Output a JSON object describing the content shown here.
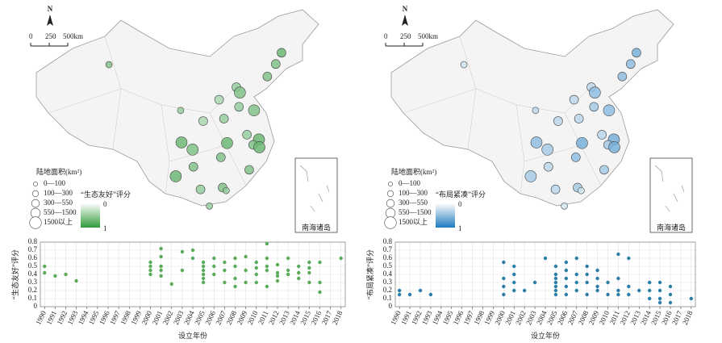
{
  "maps": [
    {
      "north": "N",
      "scale": [
        "0",
        "250",
        "500km"
      ],
      "legend_title": "陆地面积(km²)",
      "size_classes": [
        "0—100",
        "100—300",
        "300—550",
        "550—1500",
        "1500以上"
      ],
      "score_title": "“生态友好”评分",
      "score_range": [
        0,
        1
      ],
      "inset": "南海诸岛",
      "color": "#2f9a3a"
    },
    {
      "north": "N",
      "scale": [
        "0",
        "250",
        "500km"
      ],
      "legend_title": "陆地面积(km²)",
      "size_classes": [
        "0—100",
        "100—300",
        "300—550",
        "550—1500",
        "1500以上"
      ],
      "score_title": "“布局紧凑”评分",
      "score_range": [
        0,
        1
      ],
      "inset": "南海诸岛",
      "color": "#1f7bc0"
    }
  ],
  "sites": {
    "lon": [
      116.4,
      117.2,
      121.5,
      120.2,
      118.8,
      113.3,
      114.1,
      104,
      106.5,
      108.9,
      112.9,
      114.3,
      123.4,
      126.6,
      125.3,
      103.8,
      87.6,
      110.3,
      102.7,
      106.7,
      108.3,
      119.3,
      117,
      113.6,
      112.5,
      120.4,
      121.6
    ],
    "lat": [
      40,
      39.1,
      31.2,
      30.3,
      32,
      23.1,
      22.6,
      30.7,
      29.5,
      34.3,
      28.2,
      30.6,
      41.8,
      45.8,
      43.9,
      36.1,
      43.8,
      20,
      25,
      26.6,
      22.8,
      26.1,
      36.7,
      34.7,
      37.9,
      36.1,
      29.9
    ],
    "size_class": [
      2,
      3,
      3,
      2,
      2,
      2,
      1,
      3,
      3,
      2,
      2,
      3,
      2,
      2,
      2,
      1,
      1,
      1,
      3,
      2,
      2,
      2,
      2,
      2,
      2,
      3,
      3
    ],
    "eco_score": [
      0.5,
      0.6,
      0.7,
      0.6,
      0.5,
      0.6,
      0.5,
      0.7,
      0.6,
      0.4,
      0.6,
      0.7,
      0.6,
      0.7,
      0.6,
      0.5,
      0.6,
      0.5,
      0.7,
      0.6,
      0.5,
      0.6,
      0.5,
      0.5,
      0.4,
      0.6,
      0.7
    ],
    "layout_score": [
      0.3,
      0.5,
      0.6,
      0.4,
      0.3,
      0.4,
      0.2,
      0.5,
      0.4,
      0.3,
      0.5,
      0.6,
      0.5,
      0.6,
      0.5,
      0.3,
      0.2,
      0.2,
      0.4,
      0.3,
      0.3,
      0.4,
      0.4,
      0.3,
      0.3,
      0.5,
      0.6
    ]
  },
  "chart_data": [
    {
      "type": "scatter",
      "x_label": "设立年份",
      "y_label": "“生态友好”评分",
      "color": "#5aab5a",
      "grid": true,
      "x": [
        1990,
        1990,
        1991,
        1992,
        1993,
        2000,
        2000,
        2000,
        2000,
        2001,
        2001,
        2001,
        2001,
        2001,
        2002,
        2003,
        2003,
        2004,
        2004,
        2005,
        2005,
        2005,
        2005,
        2005,
        2005,
        2006,
        2006,
        2006,
        2007,
        2007,
        2007,
        2008,
        2008,
        2008,
        2008,
        2009,
        2009,
        2009,
        2010,
        2010,
        2010,
        2010,
        2011,
        2011,
        2011,
        2011,
        2011,
        2012,
        2012,
        2012,
        2012,
        2013,
        2013,
        2013,
        2014,
        2014,
        2014,
        2015,
        2015,
        2015,
        2015,
        2016,
        2016,
        2016,
        2018
      ],
      "values": [
        0.5,
        0.42,
        0.38,
        0.4,
        0.32,
        0.55,
        0.5,
        0.45,
        0.4,
        0.72,
        0.62,
        0.5,
        0.45,
        0.38,
        0.28,
        0.68,
        0.45,
        0.7,
        0.6,
        0.55,
        0.5,
        0.45,
        0.4,
        0.35,
        0.3,
        0.6,
        0.5,
        0.4,
        0.55,
        0.45,
        0.3,
        0.6,
        0.5,
        0.35,
        0.25,
        0.62,
        0.45,
        0.3,
        0.55,
        0.48,
        0.4,
        0.3,
        0.78,
        0.6,
        0.5,
        0.45,
        0.25,
        0.52,
        0.42,
        0.38,
        0.32,
        0.6,
        0.45,
        0.4,
        0.5,
        0.42,
        0.35,
        0.55,
        0.48,
        0.42,
        0.3,
        0.55,
        0.3,
        0.18,
        0.6
      ],
      "xlim": [
        1989.6,
        2018.4
      ],
      "ylim": [
        0,
        0.8
      ],
      "xticks": [
        1990,
        1991,
        1992,
        1993,
        1994,
        1995,
        1996,
        1997,
        1998,
        1999,
        2000,
        2001,
        2002,
        2003,
        2004,
        2005,
        2006,
        2007,
        2008,
        2009,
        2010,
        2011,
        2012,
        2013,
        2014,
        2015,
        2016,
        2017,
        2018
      ],
      "yticks": [
        0,
        0.1,
        0.2,
        0.3,
        0.4,
        0.5,
        0.6,
        0.7,
        0.8
      ]
    },
    {
      "type": "scatter",
      "x_label": "设立年份",
      "y_label": "“布局紧凑”评分",
      "color": "#2a7ea8",
      "grid": true,
      "x": [
        1990,
        1990,
        1991,
        1992,
        1993,
        2000,
        2000,
        2000,
        2000,
        2001,
        2001,
        2001,
        2001,
        2002,
        2003,
        2004,
        2005,
        2005,
        2005,
        2005,
        2005,
        2005,
        2005,
        2006,
        2006,
        2006,
        2006,
        2006,
        2007,
        2007,
        2007,
        2007,
        2008,
        2008,
        2008,
        2008,
        2009,
        2009,
        2009,
        2009,
        2010,
        2010,
        2011,
        2011,
        2011,
        2011,
        2012,
        2012,
        2012,
        2013,
        2014,
        2014,
        2014,
        2015,
        2015,
        2015,
        2015,
        2016,
        2016,
        2016,
        2018
      ],
      "values": [
        0.2,
        0.15,
        0.15,
        0.2,
        0.15,
        0.55,
        0.35,
        0.25,
        0.15,
        0.5,
        0.4,
        0.3,
        0.2,
        0.2,
        0.3,
        0.6,
        0.5,
        0.4,
        0.35,
        0.3,
        0.25,
        0.2,
        0.15,
        0.55,
        0.45,
        0.35,
        0.25,
        0.15,
        0.6,
        0.4,
        0.3,
        0.2,
        0.5,
        0.4,
        0.3,
        0.15,
        0.45,
        0.35,
        0.25,
        0.2,
        0.3,
        0.15,
        0.65,
        0.35,
        0.2,
        0.15,
        0.6,
        0.25,
        0.15,
        0.2,
        0.3,
        0.2,
        0.1,
        0.3,
        0.2,
        0.1,
        0.05,
        0.25,
        0.15,
        0.05,
        0.1
      ],
      "xlim": [
        1989.6,
        2018.4
      ],
      "ylim": [
        0,
        0.8
      ],
      "xticks": [
        1990,
        1991,
        1992,
        1993,
        1994,
        1995,
        1996,
        1997,
        1998,
        1999,
        2000,
        2001,
        2002,
        2003,
        2004,
        2005,
        2006,
        2007,
        2008,
        2009,
        2010,
        2011,
        2012,
        2013,
        2014,
        2015,
        2016,
        2017,
        2018
      ],
      "yticks": [
        0,
        0.1,
        0.2,
        0.3,
        0.4,
        0.5,
        0.6,
        0.7,
        0.8
      ]
    }
  ]
}
